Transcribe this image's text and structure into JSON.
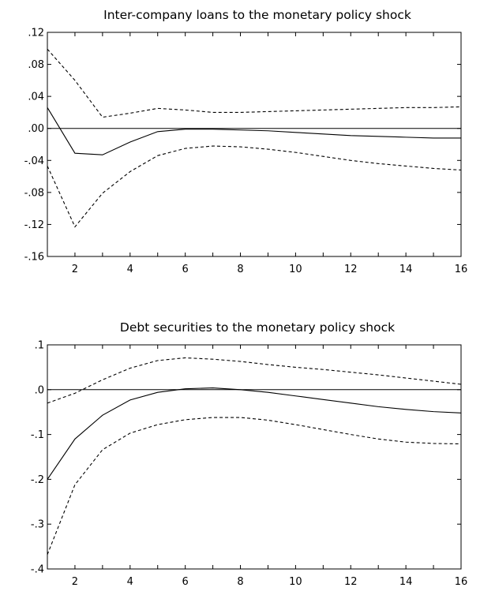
{
  "chart_data": [
    {
      "type": "line",
      "title": "Inter-company loans to the monetary policy shock",
      "xlabel": "",
      "ylabel": "",
      "x": [
        1,
        2,
        3,
        4,
        5,
        6,
        7,
        8,
        9,
        10,
        11,
        12,
        13,
        14,
        15,
        16
      ],
      "xlim": [
        1,
        16
      ],
      "ylim": [
        -0.16,
        0.12
      ],
      "x_ticks": [
        2,
        4,
        6,
        8,
        10,
        12,
        14,
        16
      ],
      "x_tick_labels": [
        "2",
        "4",
        "6",
        "8",
        "10",
        "12",
        "14",
        "16"
      ],
      "y_ticks": [
        0.12,
        0.08,
        0.04,
        0.0,
        -0.04,
        -0.08,
        -0.12,
        -0.16
      ],
      "y_tick_labels": [
        ".12",
        ".08",
        ".04",
        ".00",
        "-.04",
        "-.08",
        "-.12",
        "-.16"
      ],
      "zero_line": true,
      "grid": false,
      "series": [
        {
          "role": "response",
          "style": "solid",
          "values": [
            0.026,
            -0.031,
            -0.033,
            -0.017,
            -0.004,
            -0.001,
            -0.001,
            -0.002,
            -0.003,
            -0.005,
            -0.007,
            -0.009,
            -0.01,
            -0.011,
            -0.012,
            -0.012
          ]
        },
        {
          "role": "upper band",
          "style": "dashed",
          "values": [
            0.099,
            0.06,
            0.014,
            0.019,
            0.025,
            0.023,
            0.02,
            0.02,
            0.021,
            0.022,
            0.023,
            0.024,
            0.025,
            0.026,
            0.026,
            0.027
          ]
        },
        {
          "role": "lower band",
          "style": "dashed",
          "values": [
            -0.047,
            -0.123,
            -0.081,
            -0.054,
            -0.034,
            -0.025,
            -0.022,
            -0.023,
            -0.026,
            -0.03,
            -0.035,
            -0.04,
            -0.044,
            -0.047,
            -0.05,
            -0.052
          ]
        }
      ]
    },
    {
      "type": "line",
      "title": "Debt securities to the monetary policy shock",
      "xlabel": "",
      "ylabel": "",
      "x": [
        1,
        2,
        3,
        4,
        5,
        6,
        7,
        8,
        9,
        10,
        11,
        12,
        13,
        14,
        15,
        16
      ],
      "xlim": [
        1,
        16
      ],
      "ylim": [
        -0.4,
        0.1
      ],
      "x_ticks": [
        2,
        4,
        6,
        8,
        10,
        12,
        14,
        16
      ],
      "x_tick_labels": [
        "2",
        "4",
        "6",
        "8",
        "10",
        "12",
        "14",
        "16"
      ],
      "y_ticks": [
        0.1,
        0.0,
        -0.1,
        -0.2,
        -0.3,
        -0.4
      ],
      "y_tick_labels": [
        ".1",
        ".0",
        "-.1",
        "-.2",
        "-.3",
        "-.4"
      ],
      "zero_line": true,
      "grid": false,
      "series": [
        {
          "role": "response",
          "style": "solid",
          "values": [
            -0.2,
            -0.11,
            -0.057,
            -0.023,
            -0.006,
            0.002,
            0.004,
            0.0,
            -0.006,
            -0.014,
            -0.022,
            -0.03,
            -0.038,
            -0.044,
            -0.049,
            -0.052
          ]
        },
        {
          "role": "upper band",
          "style": "dashed",
          "values": [
            -0.03,
            -0.008,
            0.022,
            0.048,
            0.065,
            0.071,
            0.068,
            0.063,
            0.056,
            0.05,
            0.045,
            0.039,
            0.033,
            0.026,
            0.019,
            0.012
          ]
        },
        {
          "role": "lower band",
          "style": "dashed",
          "values": [
            -0.368,
            -0.212,
            -0.134,
            -0.097,
            -0.078,
            -0.067,
            -0.062,
            -0.062,
            -0.068,
            -0.078,
            -0.089,
            -0.1,
            -0.11,
            -0.117,
            -0.12,
            -0.121
          ]
        }
      ]
    }
  ]
}
